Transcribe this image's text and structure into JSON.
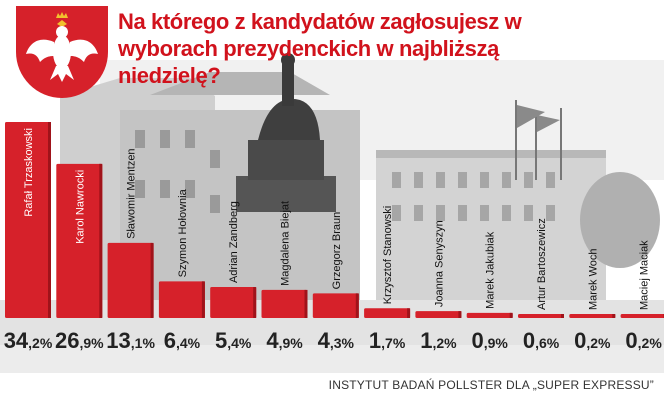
{
  "title": "Na którego z kandydatów zagłosujesz w wyborach prezydenckich w najbliższą niedzielę?",
  "source": "INSTYTUT BADAŃ POLLSTER DLA „SUPER EXPRESSU”",
  "colors": {
    "bar": "#d6212a",
    "bar_dark": "#a0131a",
    "title": "#d1121c",
    "value_text": "#222222"
  },
  "chart_data": {
    "type": "bar",
    "title": "Na którego z kandydatów zagłosujesz w wyborach prezydenckich w najbliższą niedzielę?",
    "xlabel": "",
    "ylabel": "",
    "unit": "%",
    "categories": [
      "Rafał Trzaskowski",
      "Karol Nawrocki",
      "Sławomir Mentzen",
      "Szymon Hołownia",
      "Adrian Zandberg",
      "Magdalena Biejat",
      "Grzegorz Braun",
      "Krzysztof Stanowski",
      "Joanna Senyszyn",
      "Marek Jakubiak",
      "Artur Bartoszewicz",
      "Marek Woch",
      "Maciej Maciak"
    ],
    "values": [
      34.2,
      26.9,
      13.1,
      6.4,
      5.4,
      4.9,
      4.3,
      1.7,
      1.2,
      0.9,
      0.6,
      0.2,
      0.2
    ],
    "value_labels": [
      {
        "int": "34",
        "dec": ",2%"
      },
      {
        "int": "26",
        "dec": ",9%"
      },
      {
        "int": "13",
        "dec": ",1%"
      },
      {
        "int": "6",
        "dec": ",4%"
      },
      {
        "int": "5",
        "dec": ",4%"
      },
      {
        "int": "4",
        "dec": ",9%"
      },
      {
        "int": "4",
        "dec": ",3%"
      },
      {
        "int": "1",
        "dec": ",7%"
      },
      {
        "int": "1",
        "dec": ",2%"
      },
      {
        "int": "0",
        "dec": ",9%"
      },
      {
        "int": "0",
        "dec": ",6%"
      },
      {
        "int": "0",
        "dec": ",2%"
      },
      {
        "int": "0",
        "dec": ",2%"
      }
    ],
    "grid": false,
    "legend": "none"
  }
}
